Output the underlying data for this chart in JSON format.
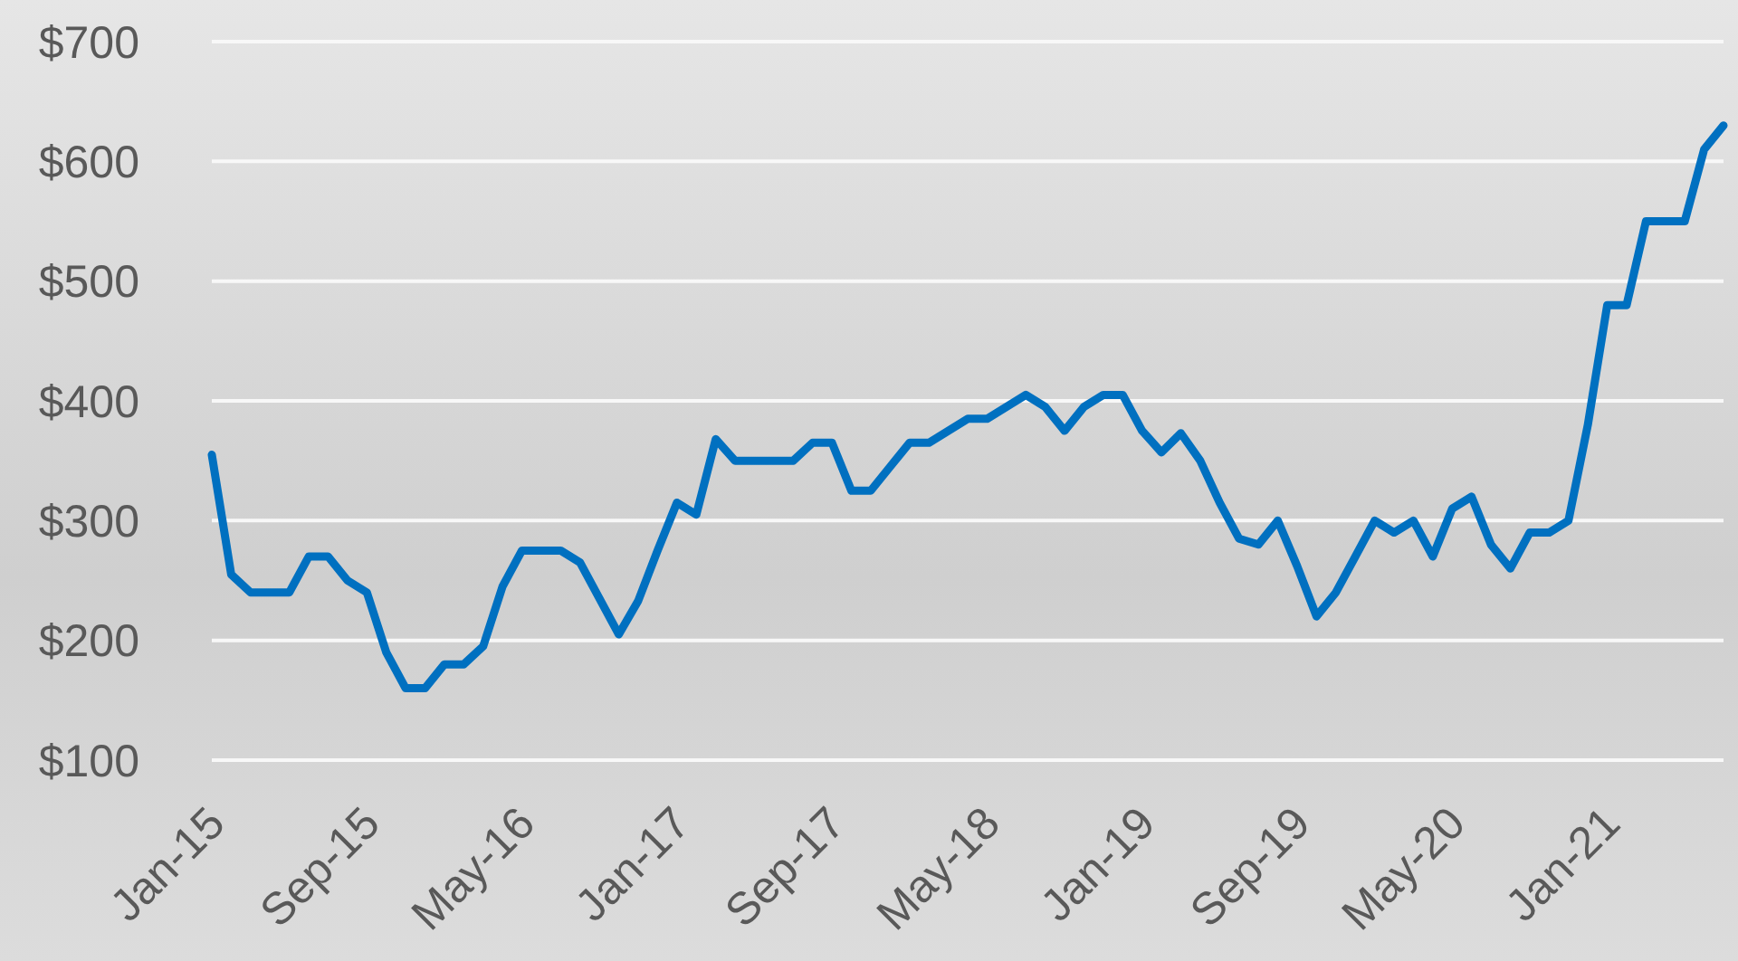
{
  "chart_data": {
    "type": "line",
    "categories": [
      "Jan-15",
      null,
      null,
      null,
      null,
      null,
      null,
      null,
      "Sep-15",
      null,
      null,
      null,
      null,
      null,
      null,
      null,
      "May-16",
      null,
      null,
      null,
      null,
      null,
      null,
      null,
      "Jan-17",
      null,
      null,
      null,
      null,
      null,
      null,
      null,
      "Sep-17",
      null,
      null,
      null,
      null,
      null,
      null,
      null,
      "May-18",
      null,
      null,
      null,
      null,
      null,
      null,
      null,
      "Jan-19",
      null,
      null,
      null,
      null,
      null,
      null,
      null,
      "Sep-19",
      null,
      null,
      null,
      null,
      null,
      null,
      null,
      "May-20",
      null,
      null,
      null,
      null,
      null,
      null,
      null,
      "Jan-21",
      null,
      null,
      null,
      null,
      null,
      null
    ],
    "series": [
      {
        "color": "#0070c0",
        "values": [
          355,
          255,
          240,
          240,
          240,
          270,
          270,
          250,
          240,
          190,
          160,
          160,
          180,
          180,
          195,
          245,
          275,
          275,
          275,
          265,
          235,
          205,
          233,
          275,
          315,
          305,
          368,
          350,
          350,
          350,
          350,
          365,
          365,
          325,
          325,
          345,
          365,
          365,
          375,
          385,
          385,
          395,
          405,
          395,
          375,
          395,
          405,
          405,
          375,
          357,
          373,
          350,
          315,
          285,
          280,
          300,
          262,
          220,
          240,
          270,
          300,
          290,
          300,
          270,
          310,
          320,
          280,
          260,
          290,
          290,
          300,
          380,
          480,
          480,
          550,
          550,
          550,
          610,
          630
        ]
      }
    ],
    "ylim": [
      100,
      700
    ],
    "yticks": [
      {
        "value": 100,
        "label": "$100"
      },
      {
        "value": 200,
        "label": "$200"
      },
      {
        "value": 300,
        "label": "$300"
      },
      {
        "value": 400,
        "label": "$400"
      },
      {
        "value": 500,
        "label": "$500"
      },
      {
        "value": 600,
        "label": "$600"
      },
      {
        "value": 700,
        "label": "$700"
      }
    ],
    "grid": "y",
    "marker": "none",
    "line_style": "solid"
  }
}
